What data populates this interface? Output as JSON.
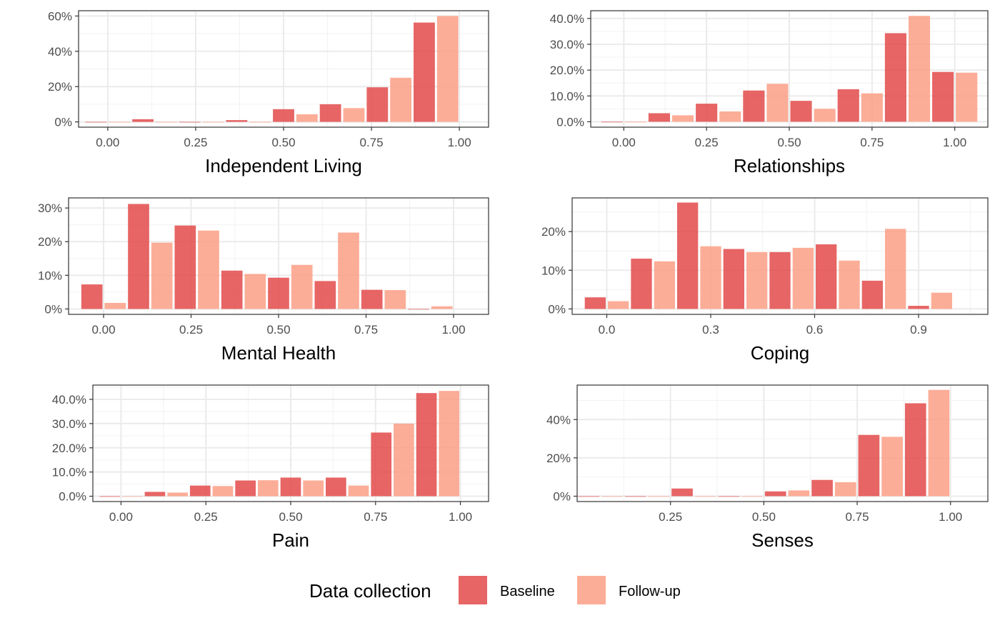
{
  "legend": {
    "title": "Data collection",
    "entries": [
      {
        "label": "Baseline",
        "color": "#e34a4a"
      },
      {
        "label": "Follow-up",
        "color": "#fc9f85"
      }
    ]
  },
  "chart_data": [
    {
      "type": "bar",
      "xlabel": "Independent Living",
      "xlim": [
        -0.083,
        1.083
      ],
      "xticks": [
        0.0,
        0.25,
        0.5,
        0.75,
        1.0
      ],
      "xtick_labels": [
        "0.00",
        "0.25",
        "0.50",
        "0.75",
        "1.00"
      ],
      "ylim": [
        -0.03,
        0.63
      ],
      "yticks": [
        0,
        0.2,
        0.4,
        0.6
      ],
      "ytick_labels": [
        "0%",
        "20%",
        "40%",
        "60%"
      ],
      "binwidth": 0.1333,
      "series": [
        {
          "name": "Baseline",
          "x": [
            -0.0333,
            0.1,
            0.2333,
            0.3667,
            0.5,
            0.6333,
            0.7667,
            0.9
          ],
          "values": [
            0.0,
            0.015,
            0.0,
            0.01,
            0.072,
            0.1,
            0.196,
            0.563
          ]
        },
        {
          "name": "Follow-up",
          "x": [
            0.0333,
            0.1667,
            0.3,
            0.4333,
            0.5667,
            0.7,
            0.8333,
            0.9667
          ],
          "values": [
            0.0,
            0.0,
            0.0,
            0.0,
            0.043,
            0.078,
            0.25,
            0.6
          ]
        }
      ]
    },
    {
      "type": "bar",
      "xlabel": "Relationships",
      "xlim": [
        -0.1,
        1.1
      ],
      "xticks": [
        0.0,
        0.25,
        0.5,
        0.75,
        1.0
      ],
      "xtick_labels": [
        "0.00",
        "0.25",
        "0.50",
        "0.75",
        "1.00"
      ],
      "ylim": [
        -0.021,
        0.43
      ],
      "yticks": [
        0,
        0.1,
        0.2,
        0.3,
        0.4
      ],
      "ytick_labels": [
        "0.0%",
        "10.0%",
        "20.0%",
        "30.0%",
        "40.0%"
      ],
      "binwidth": 0.1429,
      "series": [
        {
          "name": "Baseline",
          "x": [
            -0.0357,
            0.1071,
            0.25,
            0.3929,
            0.5357,
            0.6786,
            0.8214,
            0.9643
          ],
          "values": [
            0.0,
            0.033,
            0.07,
            0.121,
            0.081,
            0.126,
            0.343,
            0.193
          ]
        },
        {
          "name": "Follow-up",
          "x": [
            0.0357,
            0.1786,
            0.3214,
            0.4643,
            0.6071,
            0.75,
            0.8929,
            1.0357
          ],
          "values": [
            0.0,
            0.025,
            0.04,
            0.147,
            0.05,
            0.11,
            0.41,
            0.19
          ]
        }
      ]
    },
    {
      "type": "bar",
      "xlabel": "Mental Health",
      "xlim": [
        -0.1,
        1.1
      ],
      "xticks": [
        0.0,
        0.25,
        0.5,
        0.75,
        1.0
      ],
      "xtick_labels": [
        "0.00",
        "0.25",
        "0.50",
        "0.75",
        "1.00"
      ],
      "ylim": [
        -0.016,
        0.33
      ],
      "yticks": [
        0,
        0.1,
        0.2,
        0.3
      ],
      "ytick_labels": [
        "0%",
        "10%",
        "20%",
        "30%"
      ],
      "binwidth": 0.1333,
      "series": [
        {
          "name": "Baseline",
          "x": [
            -0.0333,
            0.1,
            0.2333,
            0.3667,
            0.5,
            0.6333,
            0.7667,
            0.9
          ],
          "values": [
            0.073,
            0.312,
            0.248,
            0.114,
            0.093,
            0.083,
            0.057,
            0.0
          ]
        },
        {
          "name": "Follow-up",
          "x": [
            0.0333,
            0.1667,
            0.3,
            0.4333,
            0.5667,
            0.7,
            0.8333,
            0.9667
          ],
          "values": [
            0.018,
            0.197,
            0.233,
            0.104,
            0.131,
            0.227,
            0.056,
            0.008
          ]
        }
      ]
    },
    {
      "type": "bar",
      "xlabel": "Coping",
      "xlim": [
        -0.1,
        1.1
      ],
      "xticks": [
        0.0,
        0.3,
        0.6,
        0.9
      ],
      "xtick_labels": [
        "0.0",
        "0.3",
        "0.6",
        "0.9"
      ],
      "ylim": [
        -0.014,
        0.287
      ],
      "yticks": [
        0,
        0.1,
        0.2
      ],
      "ytick_labels": [
        "0%",
        "10%",
        "20%"
      ],
      "binwidth": 0.1333,
      "series": [
        {
          "name": "Baseline",
          "x": [
            -0.0333,
            0.1,
            0.2333,
            0.3667,
            0.5,
            0.6333,
            0.7667,
            0.9
          ],
          "values": [
            0.03,
            0.13,
            0.275,
            0.155,
            0.147,
            0.167,
            0.073,
            0.008
          ]
        },
        {
          "name": "Follow-up",
          "x": [
            0.0333,
            0.1667,
            0.3,
            0.4333,
            0.5667,
            0.7,
            0.8333,
            0.9667
          ],
          "values": [
            0.02,
            0.123,
            0.162,
            0.147,
            0.158,
            0.125,
            0.207,
            0.042
          ]
        }
      ]
    },
    {
      "type": "bar",
      "xlabel": "Pain",
      "xlim": [
        -0.083,
        1.083
      ],
      "xticks": [
        0.0,
        0.25,
        0.5,
        0.75,
        1.0
      ],
      "xtick_labels": [
        "0.00",
        "0.25",
        "0.50",
        "0.75",
        "1.00"
      ],
      "ylim": [
        -0.022,
        0.459
      ],
      "yticks": [
        0,
        0.1,
        0.2,
        0.3,
        0.4
      ],
      "ytick_labels": [
        "0.0%",
        "10.0%",
        "20.0%",
        "30.0%",
        "40.0%"
      ],
      "binwidth": 0.1333,
      "series": [
        {
          "name": "Baseline",
          "x": [
            -0.0333,
            0.1,
            0.2333,
            0.3667,
            0.5,
            0.6333,
            0.7667,
            0.9
          ],
          "values": [
            0.0,
            0.018,
            0.044,
            0.065,
            0.077,
            0.077,
            0.263,
            0.426
          ]
        },
        {
          "name": "Follow-up",
          "x": [
            0.0333,
            0.1667,
            0.3,
            0.4333,
            0.5667,
            0.7,
            0.8333,
            0.9667
          ],
          "values": [
            0.0,
            0.015,
            0.042,
            0.066,
            0.065,
            0.044,
            0.3,
            0.435
          ]
        }
      ]
    },
    {
      "type": "bar",
      "xlabel": "Senses",
      "xlim": [
        0.0,
        1.1
      ],
      "xticks": [
        0.25,
        0.5,
        0.75,
        1.0
      ],
      "xtick_labels": [
        "0.25",
        "0.50",
        "0.75",
        "1.00"
      ],
      "ylim": [
        -0.028,
        0.58
      ],
      "yticks": [
        0,
        0.2,
        0.4
      ],
      "ytick_labels": [
        "0%",
        "20%",
        "40%"
      ],
      "binwidth": 0.125,
      "series": [
        {
          "name": "Baseline",
          "x": [
            0.0313,
            0.1563,
            0.2813,
            0.4063,
            0.5313,
            0.6563,
            0.7813,
            0.9063
          ],
          "values": [
            0.0,
            0.0,
            0.04,
            0.0,
            0.025,
            0.085,
            0.32,
            0.485
          ]
        },
        {
          "name": "Follow-up",
          "x": [
            0.0938,
            0.2188,
            0.3438,
            0.4688,
            0.5938,
            0.7188,
            0.8438,
            0.9688
          ],
          "values": [
            0.0,
            0.0,
            0.0,
            0.0,
            0.03,
            0.073,
            0.31,
            0.555
          ]
        }
      ]
    }
  ]
}
